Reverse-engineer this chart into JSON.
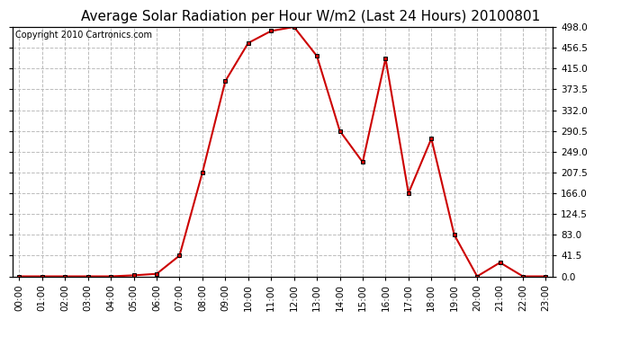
{
  "title": "Average Solar Radiation per Hour W/m2 (Last 24 Hours) 20100801",
  "copyright": "Copyright 2010 Cartronics.com",
  "hours": [
    0,
    1,
    2,
    3,
    4,
    5,
    6,
    7,
    8,
    9,
    10,
    11,
    12,
    13,
    14,
    15,
    16,
    17,
    18,
    19,
    20,
    21,
    22,
    23
  ],
  "labels": [
    "00:00",
    "01:00",
    "02:00",
    "03:00",
    "04:00",
    "05:00",
    "06:00",
    "07:00",
    "08:00",
    "09:00",
    "10:00",
    "11:00",
    "12:00",
    "13:00",
    "14:00",
    "15:00",
    "16:00",
    "17:00",
    "18:00",
    "19:00",
    "20:00",
    "21:00",
    "22:00",
    "23:00"
  ],
  "values": [
    0.0,
    0.0,
    0.0,
    0.0,
    0.0,
    2.0,
    5.0,
    41.5,
    207.5,
    390.0,
    466.0,
    490.0,
    498.0,
    440.0,
    290.5,
    228.0,
    435.0,
    166.0,
    275.0,
    83.0,
    0.0,
    27.5,
    0.0,
    0.0
  ],
  "line_color": "#cc0000",
  "marker": "s",
  "marker_color": "#000000",
  "marker_size": 3,
  "bg_color": "#ffffff",
  "plot_bg_color": "#ffffff",
  "grid_color": "#bbbbbb",
  "grid_style": "--",
  "ylim": [
    0.0,
    498.0
  ],
  "yticks": [
    0.0,
    41.5,
    83.0,
    124.5,
    166.0,
    207.5,
    249.0,
    290.5,
    332.0,
    373.5,
    415.0,
    456.5,
    498.0
  ],
  "title_fontsize": 11,
  "copyright_fontsize": 7,
  "tick_fontsize": 7.5,
  "border_color": "#000000",
  "fig_width": 6.9,
  "fig_height": 3.75,
  "dpi": 100
}
